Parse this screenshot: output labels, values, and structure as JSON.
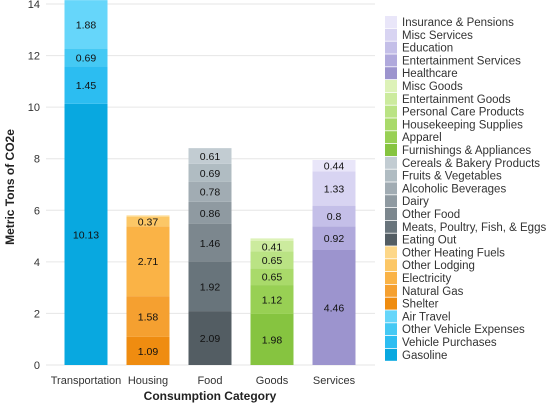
{
  "chart_data": {
    "type": "bar",
    "stacked": true,
    "orientation": "vertical",
    "xlabel": "Consumption Category",
    "ylabel": "Metric Tons of CO2e",
    "ylim": [
      0,
      14
    ],
    "yticks": [
      0,
      2,
      4,
      6,
      8,
      10,
      12,
      14
    ],
    "grid": true,
    "legend_position": "right",
    "categories": [
      "Transportation",
      "Housing",
      "Food",
      "Goods",
      "Services"
    ],
    "groups": [
      {
        "category": "Transportation",
        "segments": [
          {
            "name": "Gasoline",
            "value": 10.13,
            "label": "10.13",
            "color": "#08a8e0"
          },
          {
            "name": "Vehicle Purchases",
            "value": 1.45,
            "label": "1.45",
            "color": "#2cbdf1"
          },
          {
            "name": "Other Vehicle Expenses",
            "value": 0.69,
            "label": "0.69",
            "color": "#44c9f4"
          },
          {
            "name": "Air Travel",
            "value": 1.88,
            "label": "1.88",
            "color": "#66d6fa"
          }
        ]
      },
      {
        "category": "Housing",
        "segments": [
          {
            "name": "Shelter",
            "value": 1.09,
            "label": "1.09",
            "color": "#ef8c10"
          },
          {
            "name": "Natural Gas",
            "value": 1.58,
            "label": "1.58",
            "color": "#f5a030"
          },
          {
            "name": "Electricity",
            "value": 2.71,
            "label": "2.71",
            "color": "#fab346"
          },
          {
            "name": "Other Lodging",
            "value": 0.37,
            "label": "0.37",
            "color": "#fcc766"
          },
          {
            "name": "Other Heating Fuels",
            "value": 0.05,
            "label": "",
            "color": "#fdd788"
          }
        ]
      },
      {
        "category": "Food",
        "segments": [
          {
            "name": "Eating Out",
            "value": 2.09,
            "label": "2.09",
            "color": "#535d63"
          },
          {
            "name": "Meats, Poultry, Fish, & Eggs",
            "value": 1.92,
            "label": "1.92",
            "color": "#68747b"
          },
          {
            "name": "Other Food",
            "value": 1.46,
            "label": "1.46",
            "color": "#7c878e"
          },
          {
            "name": "Dairy",
            "value": 0.86,
            "label": "0.86",
            "color": "#8f9aa1"
          },
          {
            "name": "Alcoholic Beverages",
            "value": 0.78,
            "label": "0.78",
            "color": "#a1acb3"
          },
          {
            "name": "Fruits & Vegetables",
            "value": 0.69,
            "label": "0.69",
            "color": "#b0bcc2"
          },
          {
            "name": "Cereals & Bakery Products",
            "value": 0.61,
            "label": "0.61",
            "color": "#c2ccd2"
          }
        ]
      },
      {
        "category": "Goods",
        "segments": [
          {
            "name": "Furnishings & Appliances",
            "value": 1.98,
            "label": "1.98",
            "color": "#86c440"
          },
          {
            "name": "Apparel",
            "value": 1.12,
            "label": "1.12",
            "color": "#98d054"
          },
          {
            "name": "Housekeeping Supplies",
            "value": 0.65,
            "label": "0.65",
            "color": "#a9da6a"
          },
          {
            "name": "Personal Care Products",
            "value": 0.65,
            "label": "0.65",
            "color": "#bae384"
          },
          {
            "name": "Entertainment Goods",
            "value": 0.41,
            "label": "0.41",
            "color": "#cceb9e"
          },
          {
            "name": "Misc Goods",
            "value": 0.1,
            "label": "",
            "color": "#ddf2b8"
          }
        ]
      },
      {
        "category": "Services",
        "segments": [
          {
            "name": "Healthcare",
            "value": 4.46,
            "label": "4.46",
            "color": "#9c94ce"
          },
          {
            "name": "Entertainment Services",
            "value": 0.92,
            "label": "0.92",
            "color": "#b0a9dc"
          },
          {
            "name": "Education",
            "value": 0.8,
            "label": "0.8",
            "color": "#c4bfe8"
          },
          {
            "name": "Misc Services",
            "value": 1.33,
            "label": "1.33",
            "color": "#d8d4f2"
          },
          {
            "name": "Insurance & Pensions",
            "value": 0.44,
            "label": "0.44",
            "color": "#e9e6f9"
          }
        ]
      }
    ],
    "legend": [
      {
        "name": "Insurance & Pensions",
        "color": "#e9e6f9"
      },
      {
        "name": "Misc Services",
        "color": "#d8d4f2"
      },
      {
        "name": "Education",
        "color": "#c4bfe8"
      },
      {
        "name": "Entertainment Services",
        "color": "#b0a9dc"
      },
      {
        "name": "Healthcare",
        "color": "#9c94ce"
      },
      {
        "name": "Misc Goods",
        "color": "#ddf2b8"
      },
      {
        "name": "Entertainment Goods",
        "color": "#cceb9e"
      },
      {
        "name": "Personal Care Products",
        "color": "#bae384"
      },
      {
        "name": "Housekeeping Supplies",
        "color": "#a9da6a"
      },
      {
        "name": "Apparel",
        "color": "#98d054"
      },
      {
        "name": "Furnishings & Appliances",
        "color": "#86c440"
      },
      {
        "name": "Cereals & Bakery Products",
        "color": "#c2ccd2"
      },
      {
        "name": "Fruits & Vegetables",
        "color": "#b0bcc2"
      },
      {
        "name": "Alcoholic Beverages",
        "color": "#a1acb3"
      },
      {
        "name": "Dairy",
        "color": "#8f9aa1"
      },
      {
        "name": "Other Food",
        "color": "#7c878e"
      },
      {
        "name": "Meats, Poultry, Fish, & Eggs",
        "color": "#68747b"
      },
      {
        "name": "Eating Out",
        "color": "#535d63"
      },
      {
        "name": "Other Heating Fuels",
        "color": "#fdd788"
      },
      {
        "name": "Other Lodging",
        "color": "#fcc766"
      },
      {
        "name": "Electricity",
        "color": "#fab346"
      },
      {
        "name": "Natural Gas",
        "color": "#f5a030"
      },
      {
        "name": "Shelter",
        "color": "#ef8c10"
      },
      {
        "name": "Air Travel",
        "color": "#66d6fa"
      },
      {
        "name": "Other Vehicle Expenses",
        "color": "#44c9f4"
      },
      {
        "name": "Vehicle Purchases",
        "color": "#2cbdf1"
      },
      {
        "name": "Gasoline",
        "color": "#08a8e0"
      }
    ]
  }
}
